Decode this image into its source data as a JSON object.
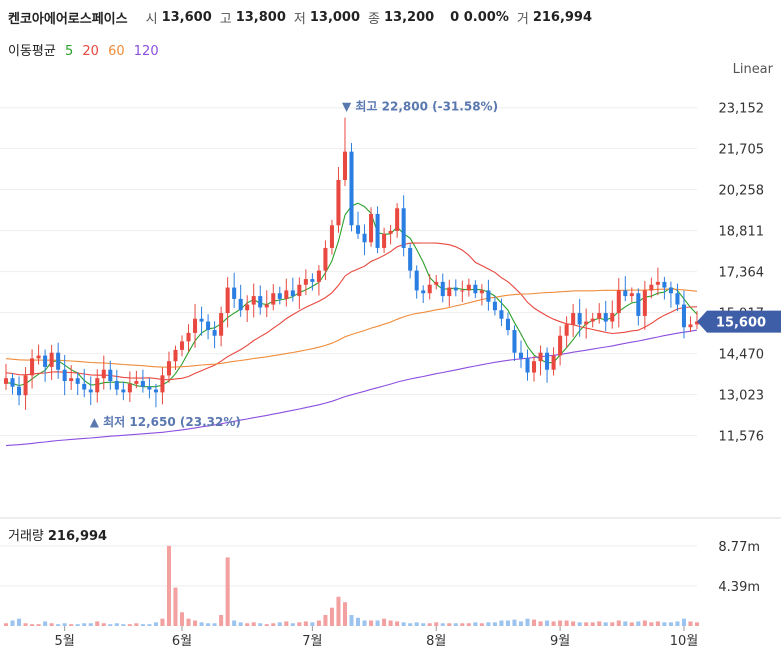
{
  "header": {
    "name": "켄코아에어로스페이스",
    "open_label": "시",
    "open": "13,600",
    "high_label": "고",
    "high": "13,800",
    "low_label": "저",
    "low": "13,000",
    "close_label": "종",
    "close": "13,200",
    "change": "0 0.00%",
    "vol_label": "거",
    "volume": "216,994"
  },
  "ma_legend": {
    "title": "이동평균",
    "items": [
      {
        "label": "5",
        "color": "#2ca02c"
      },
      {
        "label": "20",
        "color": "#e8483f"
      },
      {
        "label": "60",
        "color": "#f08c3a"
      },
      {
        "label": "120",
        "color": "#8c4fe0"
      }
    ]
  },
  "scale_label": "Linear",
  "current_price": "15,600",
  "volume_panel": {
    "title": "거래량",
    "value": "216,994"
  },
  "colors": {
    "up": "#e8483f",
    "down": "#2a7de1",
    "ma5": "#2ca02c",
    "ma20": "#e8483f",
    "ma60": "#f08c3a",
    "ma120": "#8c4fe0",
    "badge": "#3f5ea8",
    "annotation": "#5a78b0"
  },
  "chart_data": {
    "type": "candlestick",
    "price_axis": {
      "ticks": [
        "23,152",
        "21,705",
        "20,258",
        "18,811",
        "17,364",
        "15,917",
        "14,470",
        "13,023",
        "11,576"
      ],
      "range": [
        10500,
        23600
      ]
    },
    "volume_axis": {
      "ticks": [
        "8.77m",
        "4.39m"
      ],
      "max": 10.5
    },
    "x_labels": [
      "5월",
      "6월",
      "7월",
      "8월",
      "9월",
      "10월"
    ],
    "x_label_index": [
      9,
      27,
      47,
      66,
      85,
      104
    ],
    "annotations": {
      "high": {
        "text": "▼ 최고 22,800 (-31.58%)",
        "index": 52,
        "price": 22800
      },
      "low": {
        "text": "▲ 최저 12,650 (23.32%)",
        "index": 13,
        "price": 12650
      }
    },
    "close": [
      13600,
      13300,
      13000,
      13700,
      14300,
      14400,
      14000,
      14500,
      13900,
      13500,
      13600,
      13400,
      13200,
      13100,
      13600,
      13900,
      13500,
      13200,
      13100,
      13400,
      13500,
      13300,
      13200,
      13100,
      13700,
      14200,
      14600,
      14900,
      15200,
      15700,
      15600,
      15300,
      15100,
      15900,
      16800,
      16400,
      16000,
      16200,
      16500,
      16100,
      16200,
      16600,
      16400,
      16700,
      16500,
      16900,
      17100,
      17000,
      17400,
      18200,
      19000,
      20600,
      21600,
      19000,
      18700,
      18400,
      19400,
      18200,
      18700,
      18800,
      19600,
      18200,
      17400,
      16700,
      16600,
      16900,
      17000,
      16500,
      16800,
      16700,
      16700,
      16900,
      16600,
      16700,
      16300,
      16000,
      15700,
      15300,
      14500,
      14300,
      13800,
      14200,
      14500,
      13900,
      14400,
      15100,
      15500,
      15900,
      15500,
      15600,
      15700,
      15900,
      15600,
      15900,
      16700,
      16500,
      16600,
      15800,
      16700,
      16900,
      17000,
      16800,
      16600,
      16200,
      15400,
      15500,
      15600
    ],
    "volume": [
      0.3,
      0.6,
      0.8,
      0.3,
      0.2,
      0.2,
      0.5,
      0.3,
      0.2,
      0.3,
      0.2,
      0.2,
      0.3,
      0.3,
      0.5,
      0.3,
      0.2,
      0.3,
      0.2,
      0.2,
      0.3,
      0.2,
      0.2,
      0.4,
      0.8,
      8.77,
      4.2,
      1.5,
      0.8,
      0.6,
      0.4,
      0.3,
      0.3,
      1.2,
      7.5,
      0.6,
      0.4,
      0.3,
      0.4,
      0.3,
      0.2,
      0.3,
      0.4,
      0.5,
      0.3,
      0.4,
      0.5,
      0.4,
      0.6,
      1.2,
      2.0,
      3.2,
      2.6,
      1.2,
      0.9,
      0.6,
      0.6,
      0.6,
      0.8,
      0.6,
      0.5,
      0.4,
      0.3,
      0.4,
      0.3,
      0.3,
      0.4,
      0.3,
      0.3,
      0.3,
      0.3,
      0.3,
      0.4,
      0.3,
      0.4,
      0.4,
      0.6,
      0.6,
      0.7,
      0.5,
      0.8,
      0.7,
      0.5,
      0.6,
      0.5,
      0.6,
      0.6,
      0.5,
      0.4,
      0.4,
      0.4,
      0.5,
      0.4,
      0.4,
      0.6,
      0.5,
      0.4,
      0.5,
      0.6,
      0.4,
      0.5,
      0.4,
      0.4,
      0.5,
      0.8,
      0.5,
      0.4
    ]
  }
}
